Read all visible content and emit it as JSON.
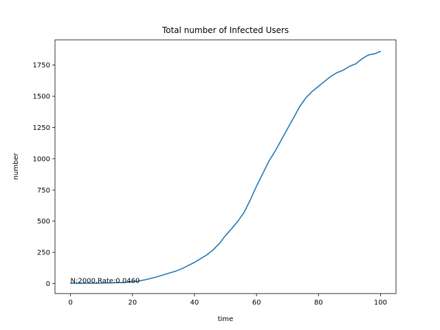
{
  "chart_data": {
    "type": "line",
    "title": "Total number of Infected Users",
    "xlabel": "time",
    "ylabel": "number",
    "xlim": [
      -5,
      105
    ],
    "ylim": [
      -80,
      1952
    ],
    "xticks": [
      0,
      20,
      40,
      60,
      80,
      100
    ],
    "yticks": [
      0,
      250,
      500,
      750,
      1000,
      1250,
      1500,
      1750
    ],
    "grid": false,
    "annotation": "N:2000,Rate:0.0460",
    "series": [
      {
        "color": "#1f77b4",
        "x": [
          0,
          2,
          4,
          6,
          8,
          10,
          12,
          14,
          16,
          18,
          20,
          22,
          24,
          26,
          28,
          30,
          32,
          34,
          36,
          38,
          40,
          42,
          44,
          46,
          48,
          50,
          52,
          54,
          56,
          58,
          60,
          62,
          64,
          66,
          68,
          70,
          72,
          74,
          76,
          78,
          80,
          82,
          84,
          86,
          88,
          90,
          92,
          94,
          96,
          98,
          100
        ],
        "y": [
          2,
          2,
          2,
          3,
          3,
          4,
          5,
          6,
          8,
          10,
          14,
          20,
          30,
          42,
          55,
          70,
          85,
          100,
          120,
          145,
          170,
          200,
          230,
          270,
          320,
          385,
          440,
          500,
          570,
          670,
          780,
          880,
          980,
          1060,
          1150,
          1240,
          1330,
          1420,
          1490,
          1540,
          1580,
          1620,
          1660,
          1690,
          1710,
          1740,
          1760,
          1800,
          1830,
          1840,
          1860
        ]
      }
    ]
  }
}
